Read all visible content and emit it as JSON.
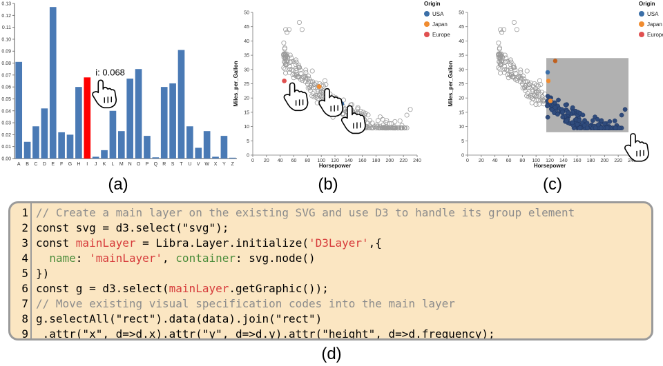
{
  "chart_data": [
    {
      "type": "bar",
      "panel_label": "(a)",
      "categories": [
        "A",
        "B",
        "C",
        "D",
        "E",
        "F",
        "G",
        "H",
        "I",
        "J",
        "K",
        "L",
        "M",
        "N",
        "O",
        "P",
        "Q",
        "R",
        "S",
        "T",
        "U",
        "V",
        "W",
        "X",
        "Y",
        "Z"
      ],
      "values": [
        0.081,
        0.014,
        0.027,
        0.042,
        0.127,
        0.022,
        0.02,
        0.06,
        0.068,
        0.0015,
        0.007,
        0.04,
        0.023,
        0.067,
        0.075,
        0.019,
        0.001,
        0.06,
        0.063,
        0.091,
        0.027,
        0.009,
        0.023,
        0.0015,
        0.019,
        0.0007
      ],
      "highlight_index": 8,
      "highlight_color": "#ff0000",
      "bar_color": "#4a7ab5",
      "tooltip": "i: 0.068",
      "ylim": [
        0,
        0.13
      ],
      "yticks": [
        "0.00",
        "0.01",
        "0.02",
        "0.03",
        "0.04",
        "0.05",
        "0.06",
        "0.07",
        "0.08",
        "0.09",
        "0.10",
        "0.11",
        "0.12",
        "0.13"
      ],
      "xlabel": "",
      "ylabel": ""
    },
    {
      "type": "scatter",
      "panel_label": "(b)",
      "xlabel": "Horsepower",
      "ylabel": "Miles_per_Gallon",
      "xlim": [
        0,
        240
      ],
      "ylim": [
        0,
        50
      ],
      "xticks": [
        "0",
        "20",
        "40",
        "60",
        "80",
        "100",
        "120",
        "140",
        "160",
        "180",
        "200",
        "220",
        "240"
      ],
      "yticks": [
        "0",
        "5",
        "10",
        "15",
        "20",
        "25",
        "30",
        "35",
        "40",
        "45",
        "50"
      ],
      "legend": {
        "title": "Origin",
        "items": [
          {
            "label": "USA",
            "color": "#3b6fa8"
          },
          {
            "label": "Japan",
            "color": "#f08c30"
          },
          {
            "label": "Europe",
            "color": "#e05050"
          }
        ],
        "position": "top-right"
      },
      "hover_points": [
        {
          "x": 46,
          "y": 26,
          "origin": "Europe"
        },
        {
          "x": 97,
          "y": 24,
          "origin": "Japan"
        },
        {
          "x": 130,
          "y": 18,
          "origin": "USA"
        }
      ]
    },
    {
      "type": "scatter",
      "panel_label": "(c)",
      "xlabel": "Horsepower",
      "ylabel": "Miles_per_Gallon",
      "xlim": [
        0,
        240
      ],
      "ylim": [
        0,
        50
      ],
      "xticks": [
        "0",
        "20",
        "40",
        "60",
        "80",
        "100",
        "120",
        "140",
        "160",
        "180",
        "200",
        "220",
        "240"
      ],
      "yticks": [
        "0",
        "5",
        "10",
        "15",
        "20",
        "25",
        "30",
        "35",
        "40",
        "45",
        "50"
      ],
      "legend": {
        "title": "Origin",
        "items": [
          {
            "label": "USA",
            "color": "#3b6fa8"
          },
          {
            "label": "Japan",
            "color": "#f08c30"
          },
          {
            "label": "Europe",
            "color": "#e05050"
          }
        ],
        "position": "top-right"
      },
      "brush": {
        "x": [
          115,
          235
        ],
        "y": [
          8,
          34
        ]
      }
    }
  ],
  "code": {
    "panel_label": "(d)",
    "lines": [
      {
        "num": "1",
        "parts": [
          {
            "t": "// Create a main layer on the existing SVG and use D3 to handle its group element",
            "c": "comment"
          }
        ]
      },
      {
        "num": "2",
        "parts": [
          {
            "t": "const svg = d3.select(\"svg\");",
            "c": ""
          }
        ]
      },
      {
        "num": "3",
        "parts": [
          {
            "t": "const ",
            "c": ""
          },
          {
            "t": "mainLayer",
            "c": "red"
          },
          {
            "t": " = Libra.Layer.initialize(",
            "c": ""
          },
          {
            "t": "'D3Layer'",
            "c": "red"
          },
          {
            "t": ",{",
            "c": ""
          }
        ]
      },
      {
        "num": "4",
        "parts": [
          {
            "t": "  ",
            "c": ""
          },
          {
            "t": "name",
            "c": "green"
          },
          {
            "t": ": ",
            "c": ""
          },
          {
            "t": "'mainLayer'",
            "c": "red"
          },
          {
            "t": ", ",
            "c": ""
          },
          {
            "t": "container",
            "c": "green"
          },
          {
            "t": ": svg.node()",
            "c": ""
          }
        ]
      },
      {
        "num": "5",
        "parts": [
          {
            "t": "})",
            "c": ""
          }
        ]
      },
      {
        "num": "6",
        "parts": [
          {
            "t": "const g = d3.select(",
            "c": ""
          },
          {
            "t": "mainLayer",
            "c": "red"
          },
          {
            "t": ".getGraphic());",
            "c": ""
          }
        ]
      },
      {
        "num": "7",
        "parts": [
          {
            "t": "// Move existing visual specification codes into the main layer",
            "c": "comment"
          }
        ]
      },
      {
        "num": "8",
        "parts": [
          {
            "t": "g.selectAll(\"rect\").data(data).join(\"rect\")",
            "c": ""
          }
        ]
      },
      {
        "num": "9",
        "parts": [
          {
            "t": " .attr(\"x\", d=>d.x).attr(\"y\", d=>d.y).attr(\"height\", d=>d.frequency);",
            "c": ""
          }
        ]
      }
    ]
  }
}
